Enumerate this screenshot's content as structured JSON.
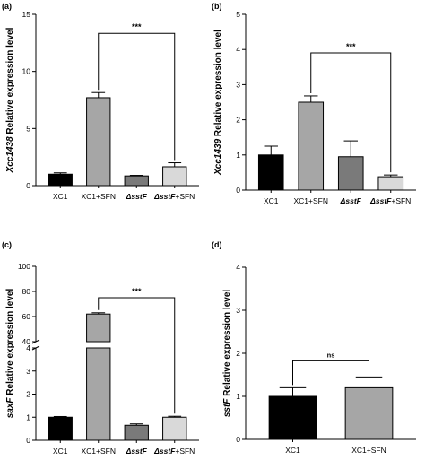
{
  "chart_data": [
    {
      "type": "bar",
      "panel_label": "(a)",
      "ylabel_italic": "Xcc1438",
      "ylabel_rest": " Relative expression  level",
      "categories": [
        "XC1",
        "XC1+SFN",
        "ΔsstF",
        "ΔsstF+SFN"
      ],
      "values": [
        1.0,
        7.7,
        0.85,
        1.65
      ],
      "errors": [
        0.12,
        0.45,
        0.05,
        0.35
      ],
      "ylim": [
        0,
        15
      ],
      "yticks": [
        0,
        5,
        10,
        15
      ],
      "bar_colors": [
        "#000000",
        "#a6a6a6",
        "#7a7a7a",
        "#d9d9d9"
      ],
      "significance": {
        "from": "XC1+SFN",
        "to": "ΔsstF+SFN",
        "label": "***"
      }
    },
    {
      "type": "bar",
      "panel_label": "(b)",
      "ylabel_italic": "Xcc1439",
      "ylabel_rest": " Relative expression  level",
      "categories": [
        "XC1",
        "XC1+SFN",
        "ΔsstF",
        "ΔsstF+SFN"
      ],
      "values": [
        1.0,
        2.5,
        0.95,
        0.38
      ],
      "errors": [
        0.25,
        0.18,
        0.45,
        0.05
      ],
      "ylim": [
        0,
        5
      ],
      "yticks": [
        0,
        1,
        2,
        3,
        4,
        5
      ],
      "bar_colors": [
        "#000000",
        "#a6a6a6",
        "#7a7a7a",
        "#d9d9d9"
      ],
      "significance": {
        "from": "XC1+SFN",
        "to": "ΔsstF+SFN",
        "label": "***"
      }
    },
    {
      "type": "bar",
      "panel_label": "(c)",
      "ylabel_italic": "saxF",
      "ylabel_rest": " Relative expression  level",
      "categories": [
        "XC1",
        "XC1+SFN",
        "ΔsstF",
        "ΔsstF+SFN"
      ],
      "values": [
        1.0,
        62.0,
        0.65,
        1.0
      ],
      "errors": [
        0.03,
        1.0,
        0.06,
        0.04
      ],
      "axis_break": true,
      "ylim_lower": [
        0,
        4
      ],
      "yticks_lower": [
        0,
        1,
        2,
        3,
        4
      ],
      "ylim_upper": [
        40,
        100
      ],
      "yticks_upper": [
        40,
        60,
        80,
        100
      ],
      "bar_colors": [
        "#000000",
        "#a6a6a6",
        "#7a7a7a",
        "#d9d9d9"
      ],
      "significance": {
        "from": "XC1+SFN",
        "to": "ΔsstF+SFN",
        "label": "***"
      }
    },
    {
      "type": "bar",
      "panel_label": "(d)",
      "ylabel_italic": "sstF",
      "ylabel_rest": " Relative expression  level",
      "categories": [
        "XC1",
        "XC1+SFN"
      ],
      "values": [
        1.0,
        1.2
      ],
      "errors": [
        0.2,
        0.25
      ],
      "ylim": [
        0,
        4
      ],
      "yticks": [
        0,
        1,
        2,
        3,
        4
      ],
      "bar_colors": [
        "#000000",
        "#a6a6a6"
      ],
      "significance": {
        "from": "XC1",
        "to": "XC1+SFN",
        "label": "ns"
      }
    }
  ]
}
